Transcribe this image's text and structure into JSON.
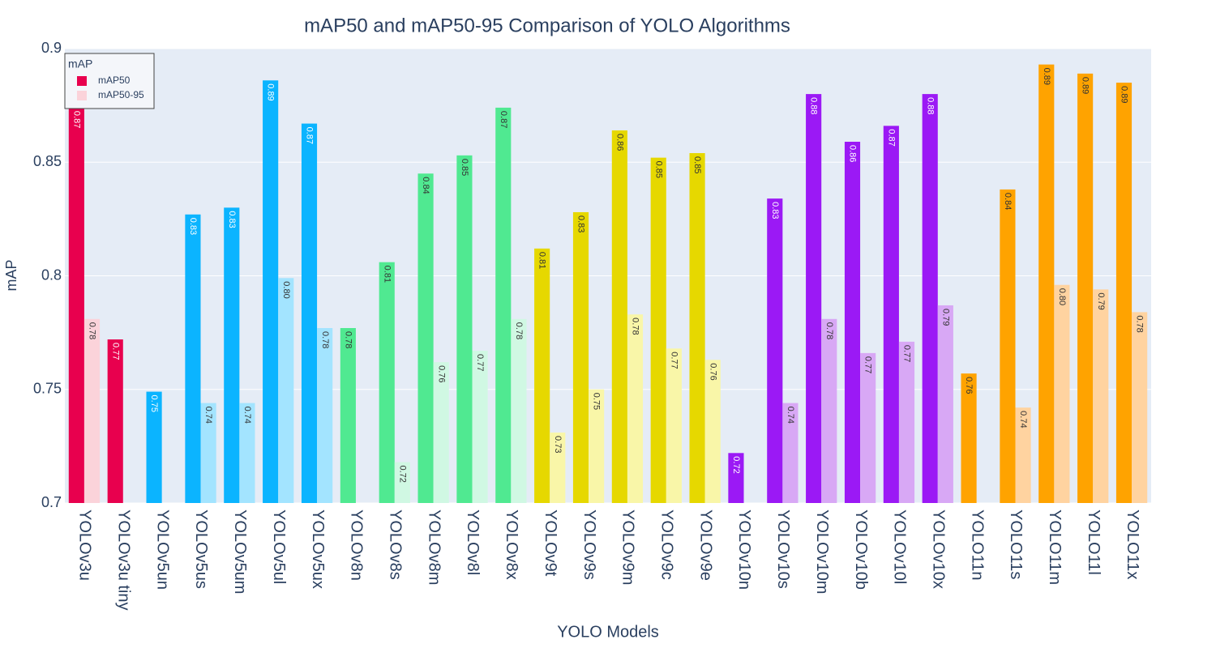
{
  "chart_data": {
    "type": "grouped_bar",
    "title": "mAP50 and mAP50-95 Comparison of YOLO Algorithms",
    "x_label": "YOLO Models",
    "y_label": "mAP",
    "legend_title": "mAP",
    "legend_position": "top-left",
    "grid": true,
    "categories": [
      "YOLOv3u",
      "YOLOv3u tiny",
      "YOLOv5un",
      "YOLOv5us",
      "YOLOv5um",
      "YOLOv5ul",
      "YOLOv5ux",
      "YOLOv8n",
      "YOLOv8s",
      "YOLOv8m",
      "YOLOv8l",
      "YOLOv8x",
      "YOLOv9t",
      "YOLOv9s",
      "YOLOv9m",
      "YOLOv9c",
      "YOLOv9e",
      "YOLOv10n",
      "YOLOv10s",
      "YOLOv10m",
      "YOLOv10b",
      "YOLOv10l",
      "YOLOv10x",
      "YOLO11n",
      "YOLO11s",
      "YOLO11m",
      "YOLO11l",
      "YOLO11x"
    ],
    "ylim": [
      0.7,
      0.9
    ],
    "yticks": [
      0.7,
      0.75,
      0.8,
      0.85,
      0.9
    ],
    "series": [
      {
        "name": "mAP50",
        "color": [
          "#e8004e",
          "#e8004e",
          "#0bb4ff",
          "#0bb4ff",
          "#0bb4ff",
          "#0bb4ff",
          "#0bb4ff",
          "#50e991",
          "#50e991",
          "#50e991",
          "#50e991",
          "#50e991",
          "#e6d800",
          "#e6d800",
          "#e6d800",
          "#e6d800",
          "#e6d800",
          "#9b19f5",
          "#9b19f5",
          "#9b19f5",
          "#9b19f5",
          "#9b19f5",
          "#9b19f5",
          "#ffa300",
          "#ffa300",
          "#ffa300",
          "#ffa300",
          "#ffa300"
        ],
        "values": [
          0.874,
          0.772,
          0.749,
          0.827,
          0.83,
          0.886,
          0.867,
          0.777,
          0.806,
          0.845,
          0.853,
          0.874,
          0.812,
          0.828,
          0.864,
          0.852,
          0.854,
          0.722,
          0.834,
          0.88,
          0.859,
          0.866,
          0.88,
          0.757,
          0.838,
          0.893,
          0.889,
          0.885
        ],
        "value_labels": [
          "0.87",
          "0.77",
          "0.75",
          "0.83",
          "0.83",
          "0.89",
          "0.87",
          "0.78",
          "0.81",
          "0.84",
          "0.85",
          "0.87",
          "0.81",
          "0.83",
          "0.86",
          "0.85",
          "0.85",
          "0.72",
          "0.83",
          "0.88",
          "0.86",
          "0.87",
          "0.88",
          "0.76",
          "0.84",
          "0.89",
          "0.89",
          "0.89"
        ]
      },
      {
        "name": "mAP50-95",
        "color": [
          "#fbd3da",
          "#fbd3da",
          "#a3e4ff",
          "#a3e4ff",
          "#a3e4ff",
          "#a3e4ff",
          "#a3e4ff",
          "#d0f8e3",
          "#d0f8e3",
          "#d0f8e3",
          "#d0f8e3",
          "#d0f8e3",
          "#f9f6a8",
          "#f9f6a8",
          "#f9f6a8",
          "#f9f6a8",
          "#f9f6a8",
          "#d8a8f5",
          "#d8a8f5",
          "#d8a8f5",
          "#d8a8f5",
          "#d8a8f5",
          "#d8a8f5",
          "#ffd3a0",
          "#ffd3a0",
          "#ffd3a0",
          "#ffd3a0",
          "#ffd3a0"
        ],
        "values": [
          0.781,
          null,
          null,
          0.744,
          0.744,
          0.799,
          0.777,
          null,
          0.718,
          0.762,
          0.767,
          0.781,
          0.731,
          0.75,
          0.783,
          0.768,
          0.763,
          null,
          0.744,
          0.781,
          0.766,
          0.771,
          0.787,
          null,
          0.742,
          0.796,
          0.794,
          0.784
        ],
        "value_labels": [
          "0.78",
          null,
          null,
          "0.74",
          "0.74",
          "0.80",
          "0.78",
          null,
          "0.72",
          "0.76",
          "0.77",
          "0.78",
          "0.73",
          "0.75",
          "0.78",
          "0.77",
          "0.76",
          null,
          "0.74",
          "0.78",
          "0.77",
          "0.77",
          "0.79",
          null,
          "0.74",
          "0.80",
          "0.79",
          "0.78"
        ]
      }
    ]
  }
}
